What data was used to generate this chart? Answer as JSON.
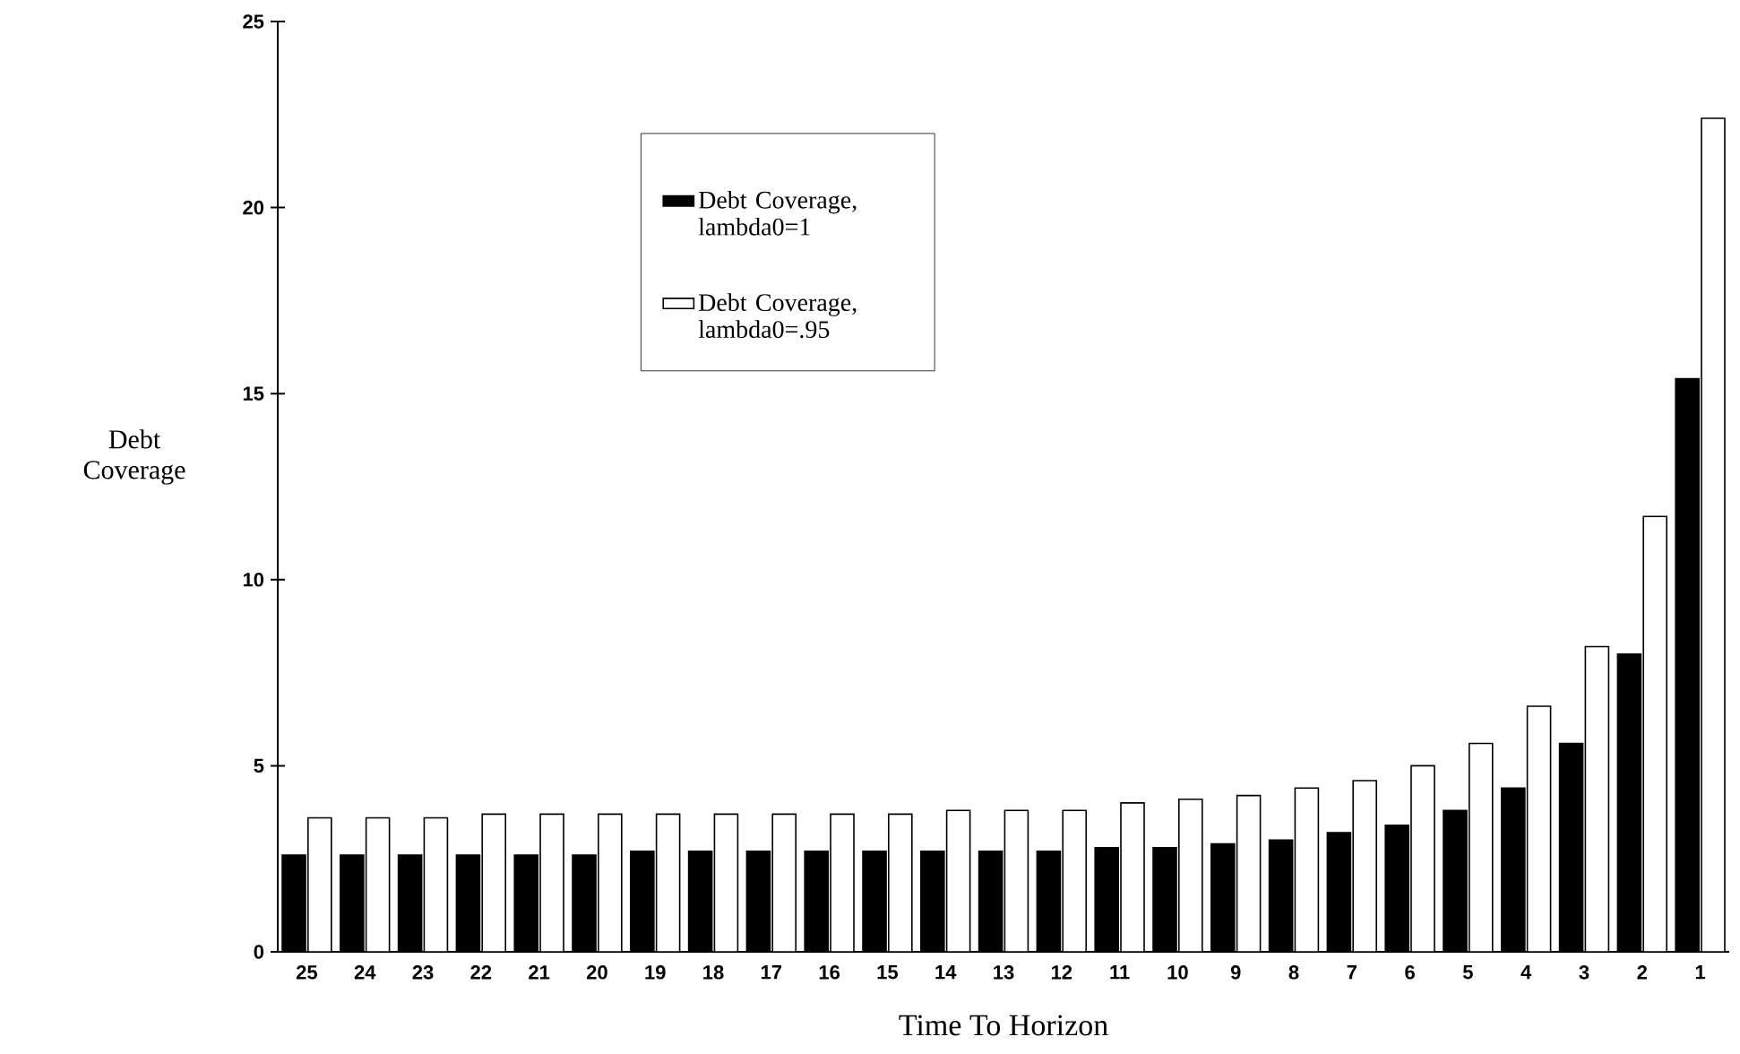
{
  "chart_data": {
    "type": "bar",
    "xlabel": "Time To Horizon",
    "ylabel": "Debt Coverage",
    "categories": [
      "25",
      "24",
      "23",
      "22",
      "21",
      "20",
      "19",
      "18",
      "17",
      "16",
      "15",
      "14",
      "13",
      "12",
      "11",
      "10",
      "9",
      "8",
      "7",
      "6",
      "5",
      "4",
      "3",
      "2",
      "1"
    ],
    "series": [
      {
        "name": "Debt Coverage, lambda0=1",
        "color": "#000000",
        "values": [
          2.6,
          2.6,
          2.6,
          2.6,
          2.6,
          2.6,
          2.7,
          2.7,
          2.7,
          2.7,
          2.7,
          2.7,
          2.7,
          2.7,
          2.8,
          2.8,
          2.9,
          3.0,
          3.2,
          3.4,
          3.8,
          4.4,
          5.6,
          8.0,
          15.4
        ]
      },
      {
        "name": "Debt Coverage, lambda0=.95",
        "color": "#ffffff",
        "values": [
          3.6,
          3.6,
          3.6,
          3.7,
          3.7,
          3.7,
          3.7,
          3.7,
          3.7,
          3.7,
          3.7,
          3.8,
          3.8,
          3.8,
          4.0,
          4.1,
          4.2,
          4.4,
          4.6,
          5.0,
          5.6,
          6.6,
          8.2,
          11.7,
          22.4
        ]
      }
    ],
    "ylim": [
      0,
      25
    ],
    "yticks": [
      0,
      5,
      10,
      15,
      20,
      25
    ],
    "legend": "top left",
    "grid": false
  }
}
